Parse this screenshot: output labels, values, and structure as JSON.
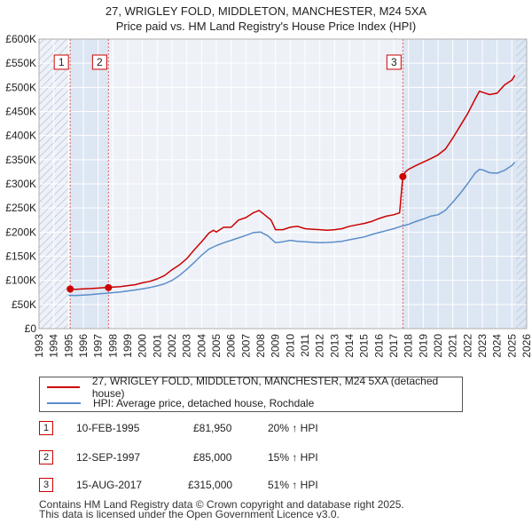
{
  "chart_data": {
    "type": "line",
    "title": "27, WRIGLEY FOLD, MIDDLETON, MANCHESTER, M24 5XA",
    "subtitle": "Price paid vs. HM Land Registry's House Price Index (HPI)",
    "xlabel": "",
    "ylabel": "",
    "xlim": [
      1993,
      2026
    ],
    "ylim": [
      0,
      600000
    ],
    "x_ticks": [
      "1993",
      "1994",
      "1995",
      "1996",
      "1997",
      "1998",
      "1999",
      "2000",
      "2001",
      "2002",
      "2003",
      "2004",
      "2005",
      "2006",
      "2007",
      "2008",
      "2009",
      "2010",
      "2011",
      "2012",
      "2013",
      "2014",
      "2015",
      "2016",
      "2017",
      "2018",
      "2019",
      "2020",
      "2021",
      "2022",
      "2023",
      "2024",
      "2025",
      "2026"
    ],
    "y_ticks": [
      {
        "value": 0,
        "label": "£0"
      },
      {
        "value": 50000,
        "label": "£50K"
      },
      {
        "value": 100000,
        "label": "£100K"
      },
      {
        "value": 150000,
        "label": "£150K"
      },
      {
        "value": 200000,
        "label": "£200K"
      },
      {
        "value": 250000,
        "label": "£250K"
      },
      {
        "value": 300000,
        "label": "£300K"
      },
      {
        "value": 350000,
        "label": "£350K"
      },
      {
        "value": 400000,
        "label": "£400K"
      },
      {
        "value": 450000,
        "label": "£450K"
      },
      {
        "value": 500000,
        "label": "£500K"
      },
      {
        "value": 550000,
        "label": "£550K"
      },
      {
        "value": 600000,
        "label": "£600K"
      }
    ],
    "series": [
      {
        "name": "27, WRIGLEY FOLD, MIDDLETON, MANCHESTER, M24 5XA (detached house)",
        "color": "#cc0000",
        "x": [
          1995.11,
          1995.5,
          1996.0,
          1996.5,
          1997.0,
          1997.4,
          1997.7,
          1998.0,
          1998.5,
          1999.0,
          1999.5,
          2000.0,
          2000.5,
          2001.0,
          2001.5,
          2002.0,
          2002.5,
          2003.0,
          2003.5,
          2004.0,
          2004.5,
          2004.8,
          2005.0,
          2005.5,
          2006.0,
          2006.5,
          2007.0,
          2007.5,
          2007.9,
          2008.3,
          2008.7,
          2009.0,
          2009.5,
          2010.0,
          2010.5,
          2011.0,
          2011.5,
          2012.0,
          2012.5,
          2013.0,
          2013.5,
          2014.0,
          2014.5,
          2015.0,
          2015.5,
          2016.0,
          2016.5,
          2017.0,
          2017.4,
          2017.62,
          2017.8,
          2018.0,
          2018.5,
          2019.0,
          2019.5,
          2020.0,
          2020.5,
          2021.0,
          2021.5,
          2022.0,
          2022.5,
          2022.8,
          2023.0,
          2023.5,
          2024.0,
          2024.5,
          2025.0,
          2025.2
        ],
        "values": [
          81950,
          81500,
          82500,
          83000,
          84000,
          84800,
          85000,
          86000,
          87000,
          89000,
          91000,
          95000,
          98000,
          103000,
          110000,
          122000,
          132000,
          145000,
          163000,
          180000,
          198000,
          204000,
          200000,
          210000,
          210000,
          225000,
          230000,
          240000,
          245000,
          235000,
          225000,
          205000,
          205000,
          210000,
          212000,
          207000,
          206000,
          205000,
          204000,
          205000,
          207000,
          212000,
          215000,
          218000,
          222000,
          228000,
          233000,
          236000,
          240000,
          315000,
          325000,
          330000,
          338000,
          345000,
          352000,
          360000,
          372000,
          395000,
          420000,
          445000,
          475000,
          492000,
          490000,
          485000,
          488000,
          505000,
          515000,
          525000
        ]
      },
      {
        "name": "HPI: Average price, detached house, Rochdale",
        "color": "#5b8ec9",
        "x": [
          1995.0,
          1995.5,
          1996.0,
          1996.5,
          1997.0,
          1997.5,
          1998.0,
          1998.5,
          1999.0,
          1999.5,
          2000.0,
          2000.5,
          2001.0,
          2001.5,
          2002.0,
          2002.5,
          2003.0,
          2003.5,
          2004.0,
          2004.5,
          2005.0,
          2005.5,
          2006.0,
          2006.5,
          2007.0,
          2007.5,
          2008.0,
          2008.5,
          2009.0,
          2009.5,
          2010.0,
          2010.5,
          2011.0,
          2011.5,
          2012.0,
          2012.5,
          2013.0,
          2013.5,
          2014.0,
          2014.5,
          2015.0,
          2015.5,
          2016.0,
          2016.5,
          2017.0,
          2017.5,
          2018.0,
          2018.5,
          2019.0,
          2019.5,
          2020.0,
          2020.5,
          2021.0,
          2021.5,
          2022.0,
          2022.5,
          2022.8,
          2023.0,
          2023.5,
          2024.0,
          2024.5,
          2025.0,
          2025.2
        ],
        "values": [
          69000,
          68500,
          69500,
          70500,
          72000,
          73000,
          74500,
          76000,
          78000,
          80000,
          82500,
          85000,
          88500,
          93000,
          100000,
          110000,
          123000,
          137000,
          152000,
          165000,
          172000,
          178000,
          183000,
          188000,
          193000,
          199000,
          200000,
          192000,
          178000,
          180000,
          183000,
          181000,
          180000,
          179000,
          178000,
          178500,
          179500,
          181000,
          184000,
          187000,
          190000,
          195000,
          199000,
          203000,
          207000,
          212000,
          216000,
          222000,
          227000,
          233000,
          236000,
          245000,
          262000,
          280000,
          300000,
          322000,
          330000,
          329000,
          323000,
          322000,
          328000,
          338000,
          345000
        ]
      }
    ],
    "annotations": [
      {
        "label": "1",
        "x": 1995.11,
        "value": 81950
      },
      {
        "label": "2",
        "x": 1997.7,
        "value": 85000
      },
      {
        "label": "3",
        "x": 2017.62,
        "value": 315000
      }
    ]
  },
  "legend": {
    "price_paid_label": "27, WRIGLEY FOLD, MIDDLETON, MANCHESTER, M24 5XA (detached house)",
    "hpi_label": "HPI: Average price, detached house, Rochdale"
  },
  "transactions": [
    {
      "num": "1",
      "date": "10-FEB-1995",
      "price": "£81,950",
      "hpi": "20% ↑ HPI"
    },
    {
      "num": "2",
      "date": "12-SEP-1997",
      "price": "£85,000",
      "hpi": "15% ↑ HPI"
    },
    {
      "num": "3",
      "date": "15-AUG-2017",
      "price": "£315,000",
      "hpi": "51% ↑ HPI"
    }
  ],
  "footer": {
    "line1": "Contains HM Land Registry data © Crown copyright and database right 2025.",
    "line2": "This data is licensed under the Open Government Licence v3.0."
  }
}
